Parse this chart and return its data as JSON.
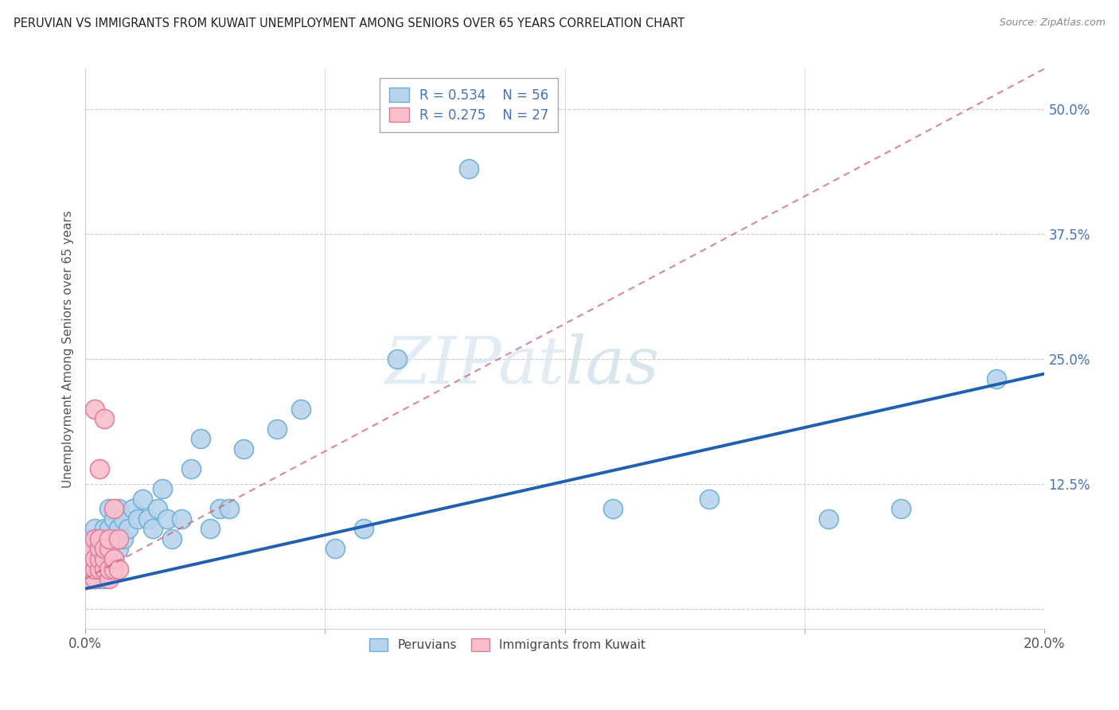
{
  "title": "PERUVIAN VS IMMIGRANTS FROM KUWAIT UNEMPLOYMENT AMONG SENIORS OVER 65 YEARS CORRELATION CHART",
  "source": "Source: ZipAtlas.com",
  "ylabel": "Unemployment Among Seniors over 65 years",
  "xlim": [
    0.0,
    0.2
  ],
  "ylim": [
    -0.02,
    0.54
  ],
  "xtick_positions": [
    0.0,
    0.05,
    0.1,
    0.15,
    0.2
  ],
  "xtick_labels": [
    "0.0%",
    "",
    "",
    "",
    "20.0%"
  ],
  "ytick_positions": [
    0.0,
    0.125,
    0.25,
    0.375,
    0.5
  ],
  "ytick_labels": [
    "",
    "12.5%",
    "25.0%",
    "37.5%",
    "50.0%"
  ],
  "legend_r1": "R = 0.534",
  "legend_n1": "N = 56",
  "legend_r2": "R = 0.275",
  "legend_n2": "N = 27",
  "peruvian_color_face": "#b8d4ed",
  "peruvian_color_edge": "#6aaed6",
  "kuwait_color_face": "#f9bfcc",
  "kuwait_color_edge": "#e07898",
  "trend_blue": "#2060b0",
  "trend_pink": "#d06070",
  "watermark_color": "#d5e5f2",
  "blue_line_x0": 0.0,
  "blue_line_y0": 0.02,
  "blue_line_x1": 0.2,
  "blue_line_y1": 0.235,
  "pink_line_x0": 0.0,
  "pink_line_y0": 0.03,
  "pink_line_x1": 0.2,
  "pink_line_y1": 0.54,
  "peruvian_x": [
    0.001,
    0.001,
    0.001,
    0.002,
    0.002,
    0.002,
    0.002,
    0.003,
    0.003,
    0.003,
    0.003,
    0.003,
    0.004,
    0.004,
    0.004,
    0.004,
    0.005,
    0.005,
    0.005,
    0.005,
    0.006,
    0.006,
    0.006,
    0.007,
    0.007,
    0.007,
    0.008,
    0.008,
    0.009,
    0.01,
    0.011,
    0.012,
    0.013,
    0.014,
    0.015,
    0.016,
    0.017,
    0.018,
    0.02,
    0.022,
    0.024,
    0.026,
    0.028,
    0.03,
    0.033,
    0.04,
    0.045,
    0.052,
    0.058,
    0.065,
    0.08,
    0.11,
    0.13,
    0.155,
    0.17,
    0.19
  ],
  "peruvian_y": [
    0.03,
    0.05,
    0.07,
    0.03,
    0.04,
    0.06,
    0.08,
    0.03,
    0.04,
    0.05,
    0.06,
    0.07,
    0.03,
    0.05,
    0.06,
    0.08,
    0.04,
    0.06,
    0.08,
    0.1,
    0.05,
    0.07,
    0.09,
    0.06,
    0.08,
    0.1,
    0.07,
    0.09,
    0.08,
    0.1,
    0.09,
    0.11,
    0.09,
    0.08,
    0.1,
    0.12,
    0.09,
    0.07,
    0.09,
    0.14,
    0.17,
    0.08,
    0.1,
    0.1,
    0.16,
    0.18,
    0.2,
    0.06,
    0.08,
    0.25,
    0.44,
    0.1,
    0.11,
    0.09,
    0.1,
    0.23
  ],
  "kuwait_x": [
    0.001,
    0.001,
    0.001,
    0.001,
    0.002,
    0.002,
    0.002,
    0.002,
    0.002,
    0.003,
    0.003,
    0.003,
    0.003,
    0.003,
    0.004,
    0.004,
    0.004,
    0.004,
    0.005,
    0.005,
    0.005,
    0.005,
    0.006,
    0.006,
    0.006,
    0.007,
    0.007
  ],
  "kuwait_y": [
    0.03,
    0.04,
    0.05,
    0.06,
    0.03,
    0.04,
    0.05,
    0.07,
    0.2,
    0.04,
    0.05,
    0.06,
    0.07,
    0.14,
    0.04,
    0.05,
    0.06,
    0.19,
    0.03,
    0.04,
    0.06,
    0.07,
    0.04,
    0.05,
    0.1,
    0.04,
    0.07
  ]
}
